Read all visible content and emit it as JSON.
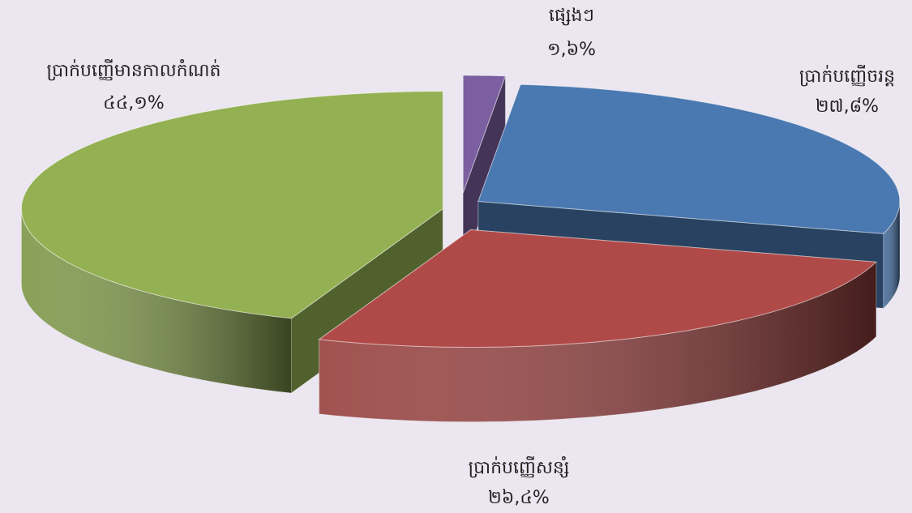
{
  "chart_data": {
    "type": "pie3d",
    "categories": [
      "ផ្សេងៗ",
      "ប្រាក់បញ្ញើចរន្ត",
      "ប្រាក់បញ្ញើសន្សំ",
      "ប្រាក់បញ្ញើមានកាលកំណត់"
    ],
    "values": [
      1.6,
      27.8,
      26.4,
      44.1
    ],
    "value_labels": [
      "១,៦%",
      "២៧,៨%",
      "២៦,៤%",
      "៤៤,១%"
    ],
    "colors": [
      "#7b5fa0",
      "#4a78b0",
      "#b04a48",
      "#93b052"
    ]
  }
}
